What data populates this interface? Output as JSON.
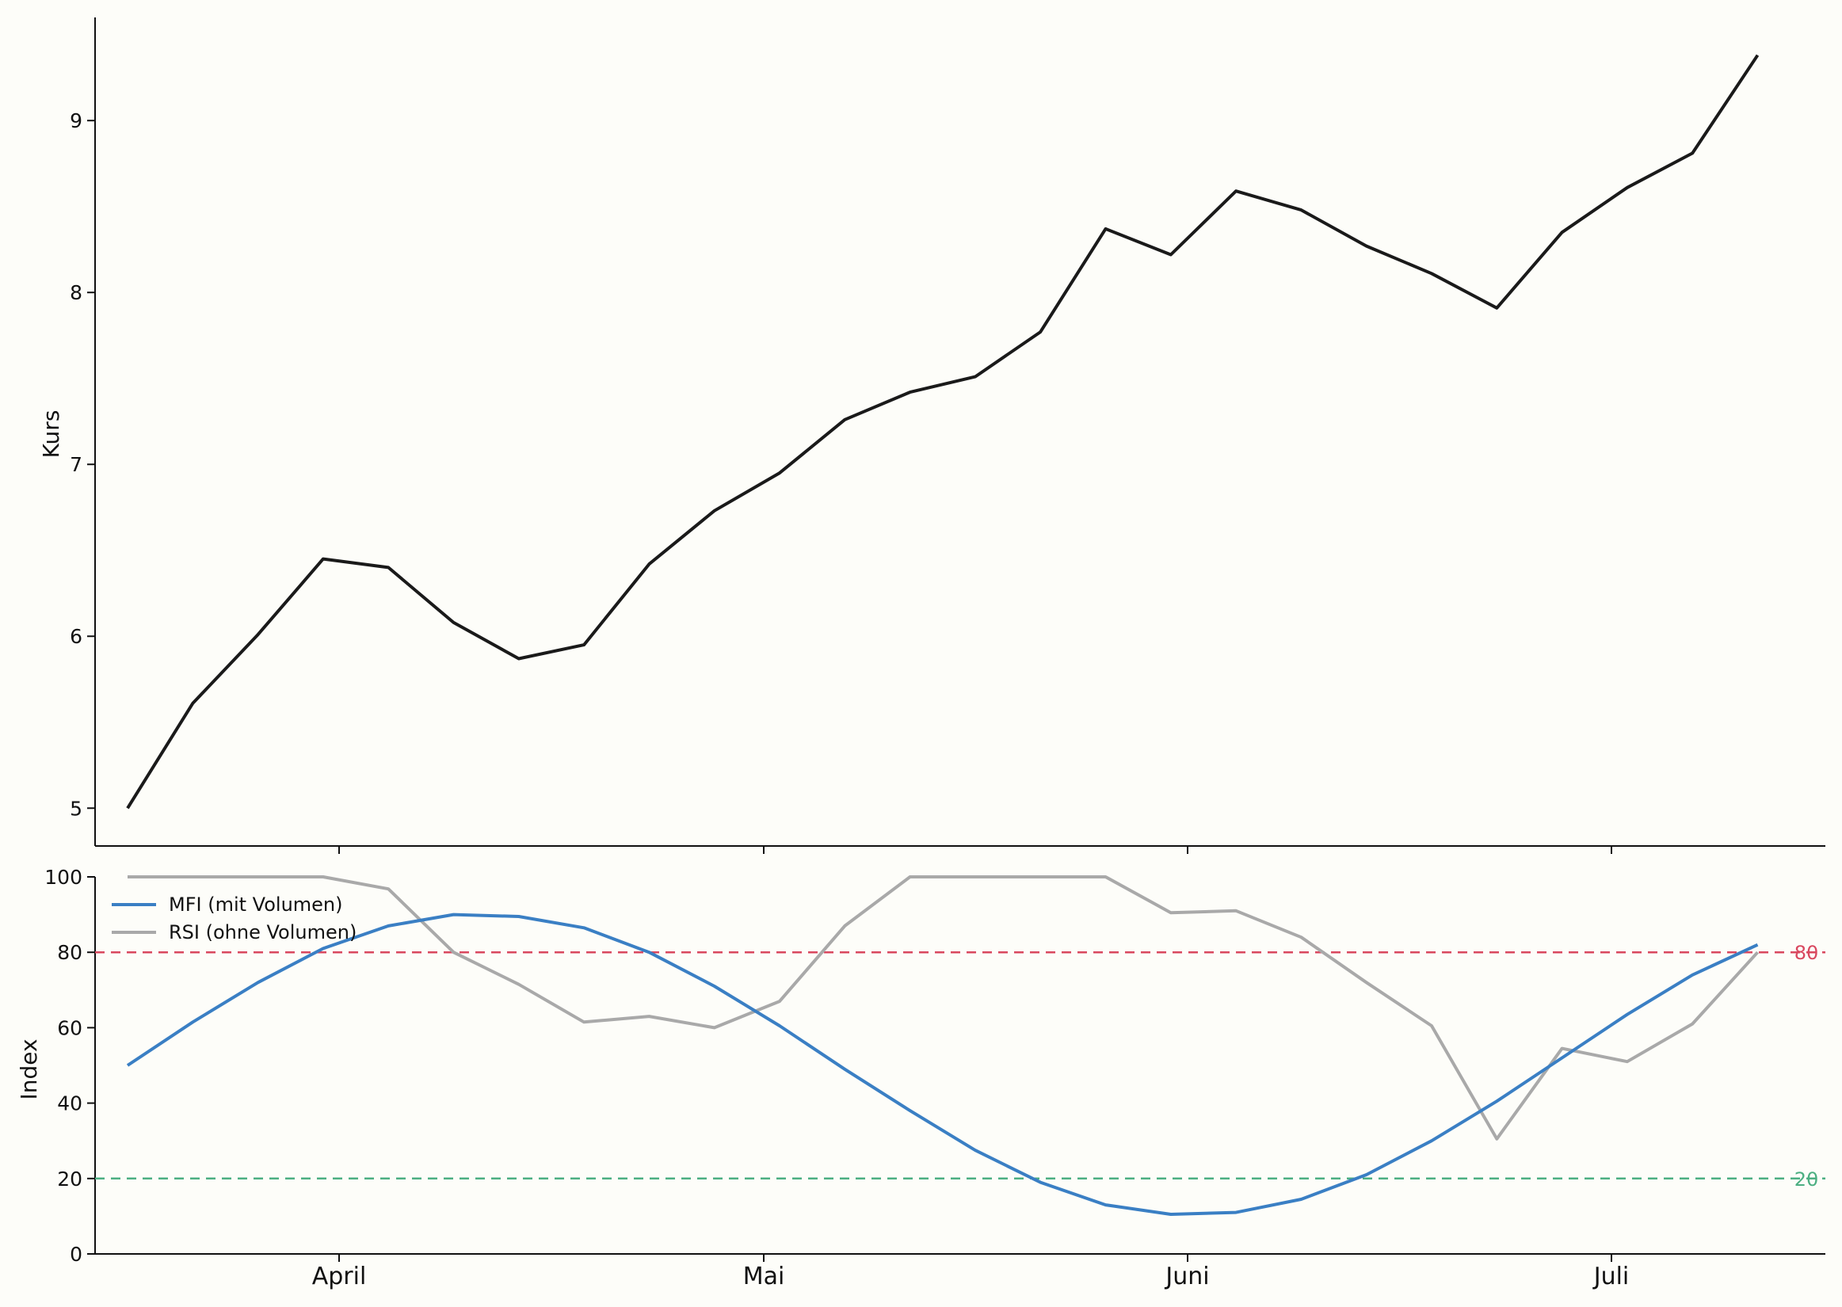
{
  "chart_data": [
    {
      "type": "line",
      "panel": "price",
      "ylabel": "Kurs",
      "ylim": [
        4.78,
        9.6
      ],
      "yticks": [
        5,
        6,
        7,
        8,
        9
      ],
      "x_index": [
        0,
        1,
        2,
        3,
        4,
        5,
        6,
        7,
        8,
        9,
        10,
        11,
        12,
        13,
        14,
        15,
        16,
        17,
        18,
        19,
        20,
        21,
        22,
        23,
        24,
        25
      ],
      "series": [
        {
          "color": "#1a1a1a",
          "values": [
            5.0,
            5.61,
            6.01,
            6.45,
            6.4,
            6.08,
            5.87,
            5.95,
            6.42,
            6.73,
            6.95,
            7.26,
            7.42,
            7.51,
            7.77,
            8.37,
            8.22,
            8.59,
            8.48,
            8.27,
            8.11,
            7.91,
            8.35,
            8.61,
            8.81,
            9.38
          ]
        }
      ],
      "xticks_marks": [
        "April",
        "Mai",
        "Juni",
        "Juli"
      ]
    },
    {
      "type": "line",
      "panel": "index",
      "ylabel": "Index",
      "ylim": [
        0,
        100
      ],
      "yticks": [
        0,
        20,
        40,
        60,
        80,
        100
      ],
      "x_index": [
        0,
        1,
        2,
        3,
        4,
        5,
        6,
        7,
        8,
        9,
        10,
        11,
        12,
        13,
        14,
        15,
        16,
        17,
        18,
        19,
        20,
        21,
        22,
        23,
        24,
        25
      ],
      "xticks": [
        "April",
        "Mai",
        "Juni",
        "Juli"
      ],
      "legend": "top-left",
      "series": [
        {
          "name": "MFI (mit Volumen)",
          "color": "#3a7fc4",
          "values": [
            50,
            61.5,
            72,
            81,
            87,
            90,
            89.5,
            86.5,
            80,
            71,
            60.5,
            49,
            38,
            27.5,
            19,
            13,
            10.5,
            11,
            14.5,
            21,
            30,
            40.5,
            52,
            63.5,
            74,
            82
          ]
        },
        {
          "name": "RSI (ohne Volumen)",
          "color": "#a9a9a9",
          "values": [
            100,
            100,
            100,
            100,
            96.8,
            80,
            71.5,
            61.5,
            63,
            60,
            67,
            87,
            100,
            100,
            100,
            100,
            90.5,
            91,
            84,
            72,
            60.5,
            30.5,
            54.5,
            51,
            61,
            80
          ]
        }
      ],
      "reference_lines": [
        {
          "value": 80,
          "label": "80",
          "color": "#d9485f"
        },
        {
          "value": 20,
          "label": "20",
          "color": "#4caf82"
        }
      ]
    }
  ]
}
